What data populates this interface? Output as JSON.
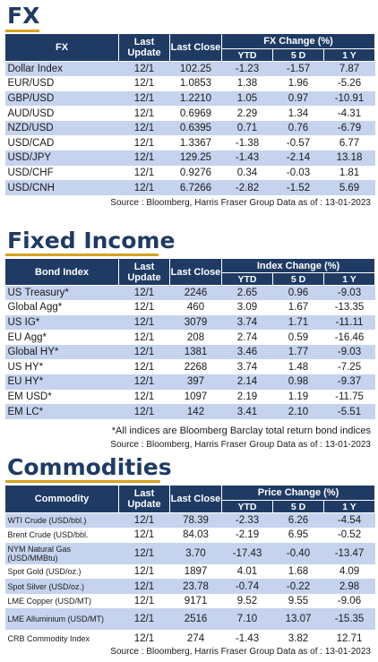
{
  "fx": {
    "title": "FX",
    "headers": {
      "name": "FX",
      "last_update": "Last Update",
      "last_close": "Last Close",
      "change": "FX Change (%)",
      "ytd": "YTD",
      "d5": "5 D",
      "y1": "1 Y"
    },
    "rows": [
      {
        "name": "Dollar Index",
        "date": "12/1",
        "close": "102.25",
        "ytd": "-1.23",
        "d5": "-1.57",
        "y1": "7.87"
      },
      {
        "name": "EUR/USD",
        "date": "12/1",
        "close": "1.0853",
        "ytd": "1.38",
        "d5": "1.96",
        "y1": "-5.26"
      },
      {
        "name": "GBP/USD",
        "date": "12/1",
        "close": "1.2210",
        "ytd": "1.05",
        "d5": "0.97",
        "y1": "-10.91"
      },
      {
        "name": "AUD/USD",
        "date": "12/1",
        "close": "0.6969",
        "ytd": "2.29",
        "d5": "1.34",
        "y1": "-4.31"
      },
      {
        "name": "NZD/USD",
        "date": "12/1",
        "close": "0.6395",
        "ytd": "0.71",
        "d5": "0.76",
        "y1": "-6.79"
      },
      {
        "name": "USD/CAD",
        "date": "12/1",
        "close": "1.3367",
        "ytd": "-1.38",
        "d5": "-0.57",
        "y1": "6.77"
      },
      {
        "name": "USD/JPY",
        "date": "12/1",
        "close": "129.25",
        "ytd": "-1.43",
        "d5": "-2.14",
        "y1": "13.18"
      },
      {
        "name": "USD/CHF",
        "date": "12/1",
        "close": "0.9276",
        "ytd": "0.34",
        "d5": "-0.03",
        "y1": "1.81"
      },
      {
        "name": "USD/CNH",
        "date": "12/1",
        "close": "6.7266",
        "ytd": "-2.82",
        "d5": "-1.52",
        "y1": "5.69"
      }
    ],
    "source": "Source : Bloomberg, Harris Fraser Group Data as of : 13-01-2023"
  },
  "fixed_income": {
    "title": "Fixed Income",
    "headers": {
      "name": "Bond Index",
      "last_update": "Last Update",
      "last_close": "Last Close",
      "change": "Index Change (%)",
      "ytd": "YTD",
      "d5": "5 D",
      "y1": "1 Y"
    },
    "rows": [
      {
        "name": "US Treasury*",
        "date": "12/1",
        "close": "2246",
        "ytd": "2.65",
        "d5": "0.96",
        "y1": "-9.03"
      },
      {
        "name": "Global Agg*",
        "date": "12/1",
        "close": "460",
        "ytd": "3.09",
        "d5": "1.67",
        "y1": "-13.35"
      },
      {
        "name": "US IG*",
        "date": "12/1",
        "close": "3079",
        "ytd": "3.74",
        "d5": "1.71",
        "y1": "-11.11"
      },
      {
        "name": "EU Agg*",
        "date": "12/1",
        "close": "208",
        "ytd": "2.74",
        "d5": "0.59",
        "y1": "-16.46"
      },
      {
        "name": "Global HY*",
        "date": "12/1",
        "close": "1381",
        "ytd": "3.46",
        "d5": "1.77",
        "y1": "-9.03"
      },
      {
        "name": "US HY*",
        "date": "12/1",
        "close": "2268",
        "ytd": "3.74",
        "d5": "1.48",
        "y1": "-7.25"
      },
      {
        "name": "EU HY*",
        "date": "12/1",
        "close": "397",
        "ytd": "2.14",
        "d5": "0.98",
        "y1": "-9.37"
      },
      {
        "name": "EM USD*",
        "date": "12/1",
        "close": "1097",
        "ytd": "2.19",
        "d5": "1.19",
        "y1": "-11.75"
      },
      {
        "name": "EM LC*",
        "date": "12/1",
        "close": "142",
        "ytd": "3.41",
        "d5": "2.10",
        "y1": "-5.51"
      }
    ],
    "note": "*All indices are Bloomberg Barclay total return bond indices",
    "source": "Source : Bloomberg, Harris Fraser Group Data as of : 13-01-2023"
  },
  "commodities": {
    "title": "Commodities",
    "headers": {
      "name": "Commodity",
      "last_update": "Last Update",
      "last_close": "Last Close",
      "change": "Price Change (%)",
      "ytd": "YTD",
      "d5": "5 D",
      "y1": "1 Y"
    },
    "rows": [
      {
        "name": "WTI Crude (USD/bbl.)",
        "date": "12/1",
        "close": "78.39",
        "ytd": "-2.33",
        "d5": "6.26",
        "y1": "-4.54"
      },
      {
        "name": "Brent Crude (USD/bbl.",
        "date": "12/1",
        "close": "84.03",
        "ytd": "-2.19",
        "d5": "6.95",
        "y1": "-0.52"
      },
      {
        "name": "NYM Natural Gas (USD/MMBtu)",
        "date": "12/1",
        "close": "3.70",
        "ytd": "-17.43",
        "d5": "-0.40",
        "y1": "-13.47"
      },
      {
        "name": "Spot Gold (USD/oz.)",
        "date": "12/1",
        "close": "1897",
        "ytd": "4.01",
        "d5": "1.68",
        "y1": "4.09"
      },
      {
        "name": "Spot Silver (USD/oz.)",
        "date": "12/1",
        "close": "23.78",
        "ytd": "-0.74",
        "d5": "-0.22",
        "y1": "2.98"
      },
      {
        "name": "LME Copper (USD/MT)",
        "date": "12/1",
        "close": "9171",
        "ytd": "9.52",
        "d5": "9.55",
        "y1": "-9.06"
      },
      {
        "name": "LME Alluminium (USD/MT)",
        "date": "12/1",
        "close": "2516",
        "ytd": "7.10",
        "d5": "13.07",
        "y1": "-15.35"
      },
      {
        "name": "CRB Commodity Index",
        "date": "12/1",
        "close": "274",
        "ytd": "-1.43",
        "d5": "3.82",
        "y1": "12.71"
      }
    ],
    "source": "Source : Bloomberg, Harris Fraser Group Data as of : 13-01-2023"
  }
}
